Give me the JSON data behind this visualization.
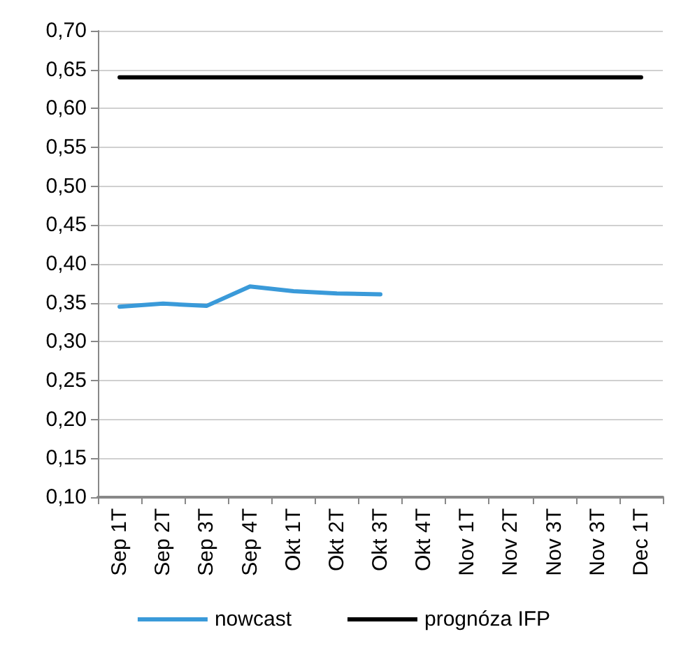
{
  "chart_data": {
    "type": "line",
    "categories": [
      "Sep 1T",
      "Sep 2T",
      "Sep 3T",
      "Sep 4T",
      "Okt 1T",
      "Okt 2T",
      "Okt 3T",
      "Okt 4T",
      "Nov 1T",
      "Nov 2T",
      "Nov 3T",
      "Nov 3T",
      "Dec 1T"
    ],
    "series": [
      {
        "name": "nowcast",
        "color": "#3a9ad9",
        "values": [
          0.345,
          0.349,
          0.346,
          0.371,
          0.365,
          0.362,
          0.361,
          null,
          null,
          null,
          null,
          null,
          null
        ]
      },
      {
        "name": "prognóza IFP",
        "color": "#000000",
        "values": [
          0.64,
          0.64,
          0.64,
          0.64,
          0.64,
          0.64,
          0.64,
          0.64,
          0.64,
          0.64,
          0.64,
          0.64,
          0.64
        ]
      }
    ],
    "ylim": [
      0.1,
      0.7
    ],
    "yticks": [
      {
        "value": 0.1,
        "label": "0,10"
      },
      {
        "value": 0.15,
        "label": "0,15"
      },
      {
        "value": 0.2,
        "label": "0,20"
      },
      {
        "value": 0.25,
        "label": "0,25"
      },
      {
        "value": 0.3,
        "label": "0,30"
      },
      {
        "value": 0.35,
        "label": "0,35"
      },
      {
        "value": 0.4,
        "label": "0,40"
      },
      {
        "value": 0.45,
        "label": "0,45"
      },
      {
        "value": 0.5,
        "label": "0,50"
      },
      {
        "value": 0.55,
        "label": "0,55"
      },
      {
        "value": 0.6,
        "label": "0,60"
      },
      {
        "value": 0.65,
        "label": "0,65"
      },
      {
        "value": 0.7,
        "label": "0,70"
      }
    ],
    "grid": "y",
    "legend": "bottom",
    "marker": "none",
    "line_style": "solid"
  }
}
